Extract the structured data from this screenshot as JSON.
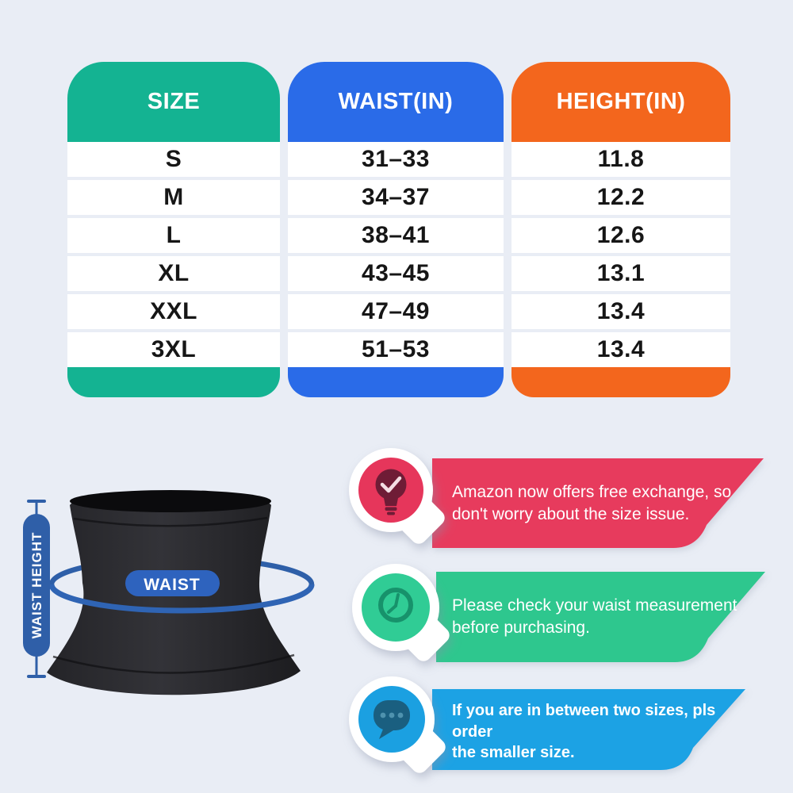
{
  "background_color": "#E9EDF5",
  "chart_data": {
    "type": "table",
    "columns": [
      {
        "label": "SIZE",
        "color": "#14B392"
      },
      {
        "label": "WAIST(IN)",
        "color": "#2A6BE8"
      },
      {
        "label": "HEIGHT(IN)",
        "color": "#F3661D"
      }
    ],
    "rows": [
      [
        "S",
        "31–33",
        "11.8"
      ],
      [
        "M",
        "34–37",
        "12.2"
      ],
      [
        "L",
        "38–41",
        "12.6"
      ],
      [
        "XL",
        "43–45",
        "13.1"
      ],
      [
        "XXL",
        "47–49",
        "13.4"
      ],
      [
        "3XL",
        "51–53",
        "13.4"
      ]
    ]
  },
  "diagram": {
    "waist_label": "WAIST",
    "waist_height_label": "WAIST HEIGHT",
    "ruler_blue": "#2F5FA8",
    "ring_blue": "#2E5FA8",
    "ring_front_blue": "#2F64B4",
    "pill_blue": "#2E63BE",
    "garment_color": "#232327"
  },
  "callouts": [
    {
      "icon": "lightbulb-check-icon",
      "banner_color": "#E73A5D",
      "circle_color": "#E6365B",
      "icon_color": "#6F1C36",
      "check_color": "#F4DEE4",
      "text": "Amazon now offers free exchange, so\ndon't worry about the size issue."
    },
    {
      "icon": "clock-icon",
      "banner_color": "#2DC78E",
      "circle_color": "#30CC95",
      "icon_color": "#17926B",
      "text": "Please check your waist measurement\nbefore purchasing."
    },
    {
      "icon": "chat-dots-icon",
      "banner_color": "#1BA2E4",
      "circle_color": "#1BA0E1",
      "icon_color": "#1A5F80",
      "dot_color": "#4E92AE",
      "text": "If you are in between two sizes, pls order\nthe smaller size."
    }
  ]
}
